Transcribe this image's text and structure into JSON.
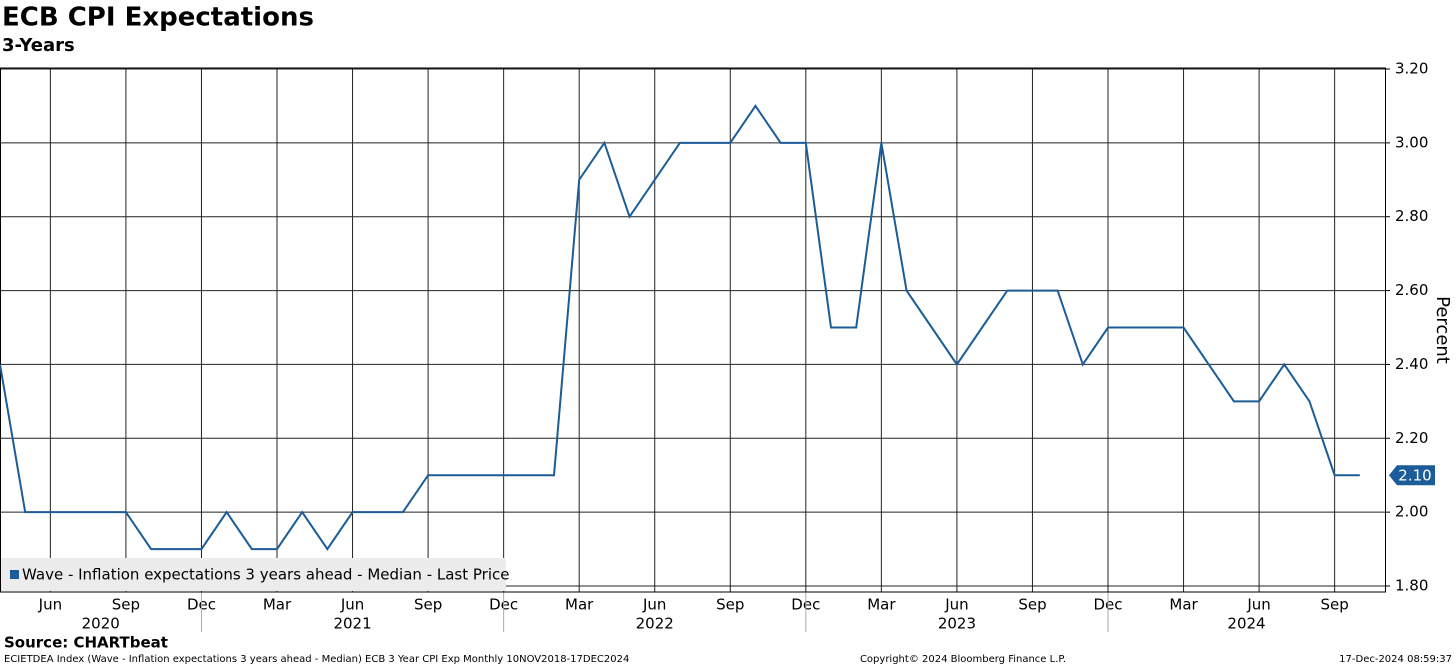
{
  "chart_data": {
    "type": "line",
    "title": "ECB CPI Expectations",
    "subtitle": "3-Years",
    "y_label": "Percent",
    "source": "Source: CHARTbeat",
    "footer_left": "ECIETDEA Index (Wave - Inflation expectations 3 years ahead - Median) ECB 3 Year CPI Exp  Monthly 10NOV2018-17DEC2024",
    "footer_center": "Copyright© 2024 Bloomberg Finance L.P.",
    "footer_right": "17-Dec-2024 08:59:37",
    "x": [
      "2020-04",
      "2020-05",
      "2020-06",
      "2020-07",
      "2020-08",
      "2020-09",
      "2020-10",
      "2020-11",
      "2020-12",
      "2021-01",
      "2021-02",
      "2021-03",
      "2021-04",
      "2021-05",
      "2021-06",
      "2021-07",
      "2021-08",
      "2021-09",
      "2021-10",
      "2021-11",
      "2021-12",
      "2022-01",
      "2022-02",
      "2022-03",
      "2022-04",
      "2022-05",
      "2022-06",
      "2022-07",
      "2022-08",
      "2022-09",
      "2022-10",
      "2022-11",
      "2022-12",
      "2023-01",
      "2023-02",
      "2023-03",
      "2023-04",
      "2023-05",
      "2023-06",
      "2023-07",
      "2023-08",
      "2023-09",
      "2023-10",
      "2023-11",
      "2023-12",
      "2024-01",
      "2024-02",
      "2024-03",
      "2024-04",
      "2024-05",
      "2024-06",
      "2024-07",
      "2024-08",
      "2024-09",
      "2024-10"
    ],
    "series": [
      {
        "name": "Wave - Inflation expectations 3 years ahead - Median - Last Price",
        "color": "#1c5c98",
        "values": [
          2.4,
          2.0,
          2.0,
          2.0,
          2.0,
          2.0,
          1.9,
          1.9,
          1.9,
          2.0,
          1.9,
          1.9,
          2.0,
          1.9,
          2.0,
          2.0,
          2.0,
          2.1,
          2.1,
          2.1,
          2.1,
          2.1,
          2.1,
          2.9,
          3.0,
          2.8,
          2.9,
          3.0,
          3.0,
          3.0,
          3.1,
          3.0,
          3.0,
          2.5,
          2.5,
          3.0,
          2.6,
          2.5,
          2.4,
          2.5,
          2.6,
          2.6,
          2.6,
          2.4,
          2.5,
          2.5,
          2.5,
          2.5,
          2.4,
          2.3,
          2.3,
          2.4,
          2.3,
          2.1,
          2.1
        ],
        "value_labels": [
          null,
          null,
          null,
          null,
          null,
          null,
          null,
          null,
          null,
          null,
          null,
          null,
          null,
          null,
          null,
          null,
          null,
          null,
          null,
          null,
          null,
          null,
          null,
          null,
          null,
          null,
          null,
          null,
          null,
          null,
          null,
          null,
          null,
          null,
          null,
          null,
          null,
          null,
          null,
          null,
          null,
          null,
          null,
          null,
          null,
          null,
          null,
          null,
          null,
          null,
          null,
          null,
          null,
          null,
          "2.10"
        ]
      }
    ],
    "xlim": [
      "2020-04",
      "2024-11"
    ],
    "xticks": [
      {
        "value": "2020-06",
        "label": "Jun"
      },
      {
        "value": "2020-09",
        "label": "Sep"
      },
      {
        "value": "2020-12",
        "label": "Dec"
      },
      {
        "value": "2021-03",
        "label": "Mar"
      },
      {
        "value": "2021-06",
        "label": "Jun"
      },
      {
        "value": "2021-09",
        "label": "Sep"
      },
      {
        "value": "2021-12",
        "label": "Dec"
      },
      {
        "value": "2022-03",
        "label": "Mar"
      },
      {
        "value": "2022-06",
        "label": "Jun"
      },
      {
        "value": "2022-09",
        "label": "Sep"
      },
      {
        "value": "2022-12",
        "label": "Dec"
      },
      {
        "value": "2023-03",
        "label": "Mar"
      },
      {
        "value": "2023-06",
        "label": "Jun"
      },
      {
        "value": "2023-09",
        "label": "Sep"
      },
      {
        "value": "2023-12",
        "label": "Dec"
      },
      {
        "value": "2024-03",
        "label": "Mar"
      },
      {
        "value": "2024-06",
        "label": "Jun"
      },
      {
        "value": "2024-09",
        "label": "Sep"
      }
    ],
    "year_labels": [
      "2020",
      "2021",
      "2022",
      "2023",
      "2024"
    ],
    "ylim": [
      1.8,
      3.2
    ],
    "yticks": [
      {
        "value": 1.8,
        "label": "1.80"
      },
      {
        "value": 2.0,
        "label": "2.00"
      },
      {
        "value": 2.2,
        "label": "2.20"
      },
      {
        "value": 2.4,
        "label": "2.40"
      },
      {
        "value": 2.6,
        "label": "2.60"
      },
      {
        "value": 2.8,
        "label": "2.80"
      },
      {
        "value": 3.0,
        "label": "3.00"
      },
      {
        "value": 3.2,
        "label": "3.20"
      }
    ],
    "grid": true,
    "legend": "lower left"
  }
}
